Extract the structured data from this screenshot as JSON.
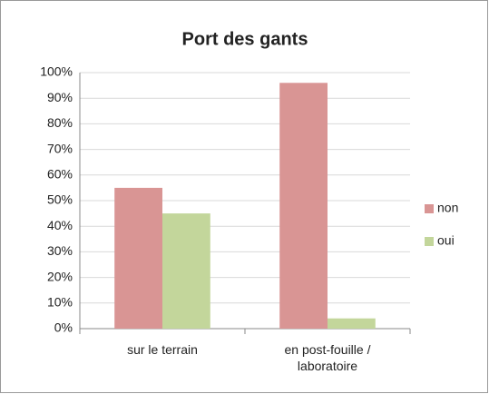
{
  "chart_data": {
    "type": "bar",
    "title": "Port des gants",
    "categories": [
      "sur le terrain",
      "en post-fouille / laboratoire"
    ],
    "series": [
      {
        "name": "non",
        "color": "#d99594",
        "values": [
          55,
          96
        ]
      },
      {
        "name": "oui",
        "color": "#c3d69b",
        "values": [
          45,
          4
        ]
      }
    ],
    "ylim": [
      0,
      100
    ],
    "yticks": [
      {
        "value": 0,
        "label": "0%"
      },
      {
        "value": 10,
        "label": "10%"
      },
      {
        "value": 20,
        "label": "20%"
      },
      {
        "value": 30,
        "label": "30%"
      },
      {
        "value": 40,
        "label": "40%"
      },
      {
        "value": 50,
        "label": "50%"
      },
      {
        "value": 60,
        "label": "60%"
      },
      {
        "value": 70,
        "label": "70%"
      },
      {
        "value": 80,
        "label": "80%"
      },
      {
        "value": 90,
        "label": "90%"
      },
      {
        "value": 100,
        "label": "100%"
      }
    ],
    "grid": true,
    "legend": "right"
  }
}
